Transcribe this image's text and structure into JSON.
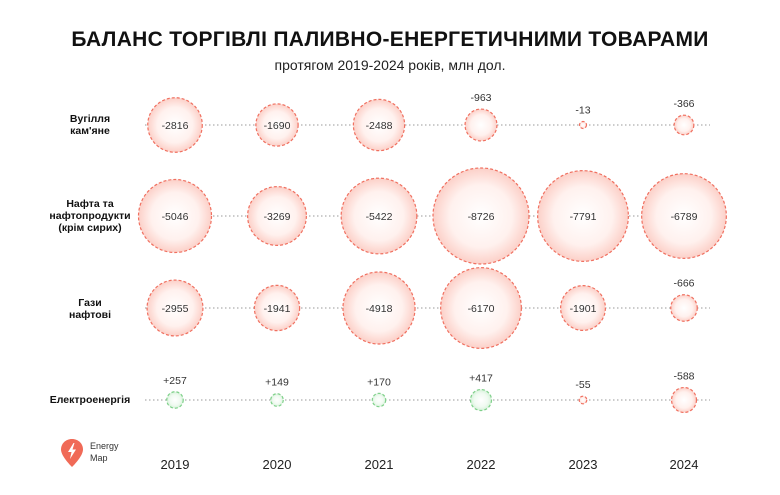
{
  "header": {
    "title": "БАЛАНС ТОРГІВЛІ ПАЛИВНО-ЕНЕРГЕТИЧНИМИ ТОВАРАМИ",
    "subtitle": "протягом 2019-2024 років, млн дол."
  },
  "logo": {
    "line1": "Energy",
    "line2": "Map"
  },
  "colors": {
    "negative_stroke": "#f07060",
    "negative_fill_inner": "#ffffff",
    "negative_fill_outer": "#fcd0c8",
    "positive_stroke": "#7fd08a",
    "positive_fill_inner": "#ffffff",
    "positive_fill_outer": "#d6f2d9",
    "logo": "#f06a57",
    "dotted_line": "#999999"
  },
  "chart_data": {
    "type": "bubble-matrix",
    "title": "БАЛАНС ТОРГІВЛІ ПАЛИВНО-ЕНЕРГЕТИЧНИМИ ТОВАРАМИ",
    "subtitle": "протягом 2019-2024 років, млн дол.",
    "years": [
      "2019",
      "2020",
      "2021",
      "2022",
      "2023",
      "2024"
    ],
    "series": [
      {
        "name": "Вугілля кам'яне",
        "label_lines": [
          "Вугілля",
          "кам'яне"
        ],
        "values": [
          -2816,
          -1690,
          -2488,
          -963,
          -13,
          -366
        ],
        "labels": [
          "-2816",
          "-1690",
          "-2488",
          "-963",
          "-13",
          "-366"
        ]
      },
      {
        "name": "Нафта та нафтопродукти (крім сирих)",
        "label_lines": [
          "Нафта та",
          "нафтопродукти",
          "(крім сирих)"
        ],
        "values": [
          -5046,
          -3269,
          -5422,
          -8726,
          -7791,
          -6789
        ],
        "labels": [
          "-5046",
          "-3269",
          "-5422",
          "-8726",
          "-7791",
          "-6789"
        ]
      },
      {
        "name": "Гази нафтові",
        "label_lines": [
          "Гази",
          "нафтові"
        ],
        "values": [
          -2955,
          -1941,
          -4918,
          -6170,
          -1901,
          -666
        ],
        "labels": [
          "-2955",
          "-1941",
          "-4918",
          "-6170",
          "-1901",
          "-666"
        ]
      },
      {
        "name": "Електроенергія",
        "label_lines": [
          "Електроенергія"
        ],
        "values": [
          257,
          149,
          170,
          417,
          -55,
          -588
        ],
        "labels": [
          "+257",
          "+149",
          "+170",
          "+417",
          "-55",
          "-588"
        ]
      }
    ]
  }
}
